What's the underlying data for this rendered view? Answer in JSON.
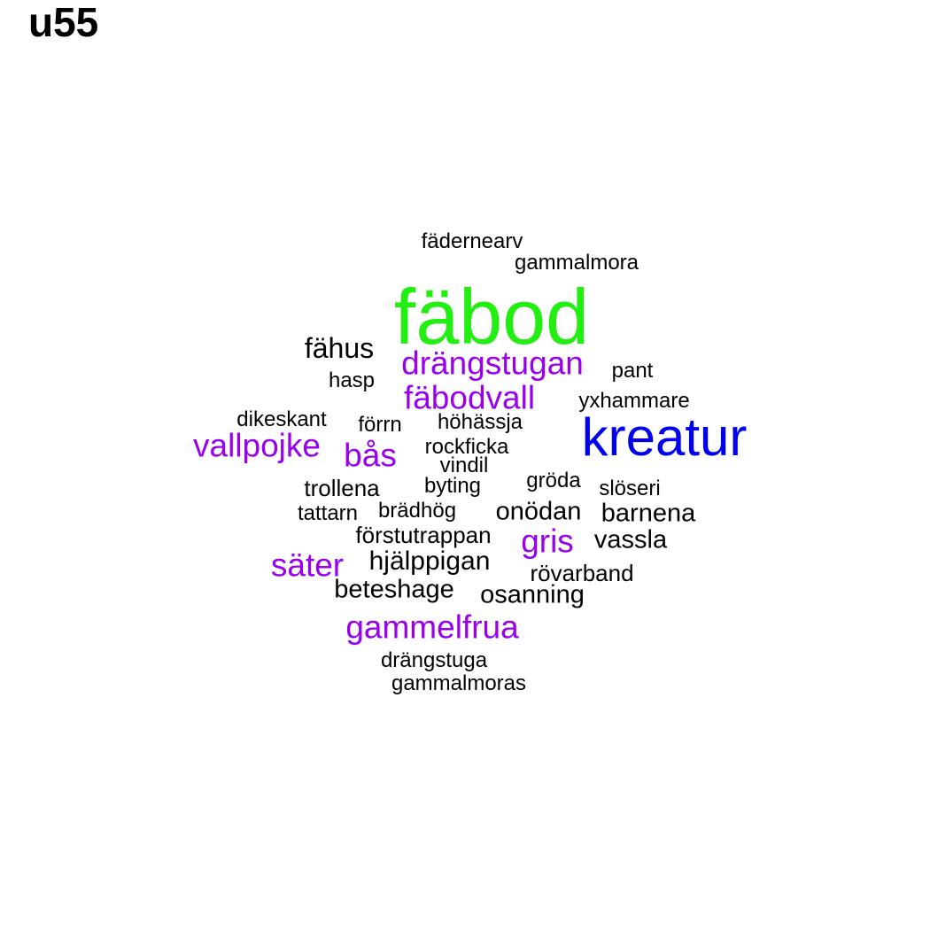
{
  "title": "u55",
  "palette": {
    "top": "#22ee11",
    "second": "#0000ee",
    "third": "#9900ee",
    "rest": "#000000"
  },
  "words": [
    {
      "text": "fäbod",
      "tier": "top"
    },
    {
      "text": "kreatur",
      "tier": "second"
    },
    {
      "text": "drängstugan",
      "tier": "third"
    },
    {
      "text": "fäbodvall",
      "tier": "third"
    },
    {
      "text": "vallpojke",
      "tier": "third"
    },
    {
      "text": "bås",
      "tier": "third"
    },
    {
      "text": "gris",
      "tier": "third"
    },
    {
      "text": "säter",
      "tier": "third"
    },
    {
      "text": "gammelfrua",
      "tier": "third"
    },
    {
      "text": "fädernearv",
      "tier": "rest"
    },
    {
      "text": "gammalmora",
      "tier": "rest"
    },
    {
      "text": "fähus",
      "tier": "rest"
    },
    {
      "text": "pant",
      "tier": "rest"
    },
    {
      "text": "hasp",
      "tier": "rest"
    },
    {
      "text": "yxhammare",
      "tier": "rest"
    },
    {
      "text": "dikeskant",
      "tier": "rest"
    },
    {
      "text": "förrn",
      "tier": "rest"
    },
    {
      "text": "höhässja",
      "tier": "rest"
    },
    {
      "text": "rockficka",
      "tier": "rest"
    },
    {
      "text": "vindil",
      "tier": "rest"
    },
    {
      "text": "trollena",
      "tier": "rest"
    },
    {
      "text": "byting",
      "tier": "rest"
    },
    {
      "text": "gröda",
      "tier": "rest"
    },
    {
      "text": "slöseri",
      "tier": "rest"
    },
    {
      "text": "tattarn",
      "tier": "rest"
    },
    {
      "text": "brädhög",
      "tier": "rest"
    },
    {
      "text": "onödan",
      "tier": "rest"
    },
    {
      "text": "barnena",
      "tier": "rest"
    },
    {
      "text": "förstutrappan",
      "tier": "rest"
    },
    {
      "text": "vassla",
      "tier": "rest"
    },
    {
      "text": "hjälppigan",
      "tier": "rest"
    },
    {
      "text": "rövarband",
      "tier": "rest"
    },
    {
      "text": "beteshage",
      "tier": "rest"
    },
    {
      "text": "osanning",
      "tier": "rest"
    },
    {
      "text": "drängstuga",
      "tier": "rest"
    },
    {
      "text": "gammalmoras",
      "tier": "rest"
    }
  ]
}
